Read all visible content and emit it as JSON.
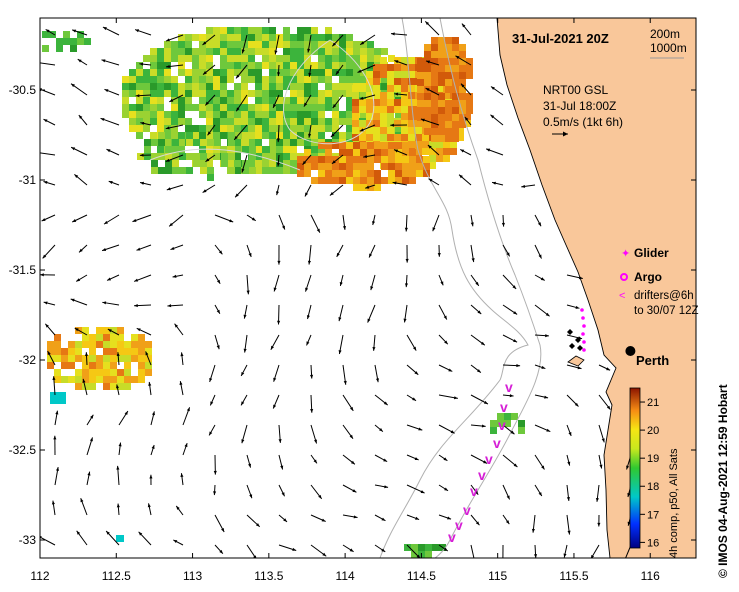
{
  "title": "31-Jul-2021 20Z",
  "depth_legend": [
    "200m",
    "1000m"
  ],
  "current_info": {
    "source": "NRT00 GSL",
    "time": "31-Jul 18:00Z",
    "scale": "0.5m/s (1kt 6h)"
  },
  "legend": {
    "glider": "Glider",
    "argo": "Argo",
    "drifters_line1": "drifters@6h",
    "drifters_line2": "to 30/07 12Z"
  },
  "city": "Perth",
  "credit": "© IMOS 04-Aug-2021 12:59 Hobart",
  "colorbar": {
    "label": "4h comp, p50, All Sats",
    "ticks": [
      "21",
      "20",
      "19",
      "18",
      "17",
      "16"
    ],
    "min": 15.8,
    "max": 21.5
  },
  "chart_data": {
    "type": "map",
    "x_ticks": [
      "112",
      "112.5",
      "113",
      "113.5",
      "114",
      "114.5",
      "115",
      "115.5",
      "116"
    ],
    "y_ticks": [
      "-30.5",
      "-31",
      "-31.5",
      "-32",
      "-32.5",
      "-33"
    ],
    "lon_range": [
      112.0,
      116.3
    ],
    "lat_range": [
      -33.1,
      -30.1
    ],
    "perth": {
      "lon": 115.87,
      "lat": -31.95
    },
    "colors": {
      "land": "#f9c79a",
      "glider": "#ff00ff",
      "argo": "#ff00ff",
      "drifter": "#d51fd5",
      "isobath": "#b0b0b0"
    }
  }
}
